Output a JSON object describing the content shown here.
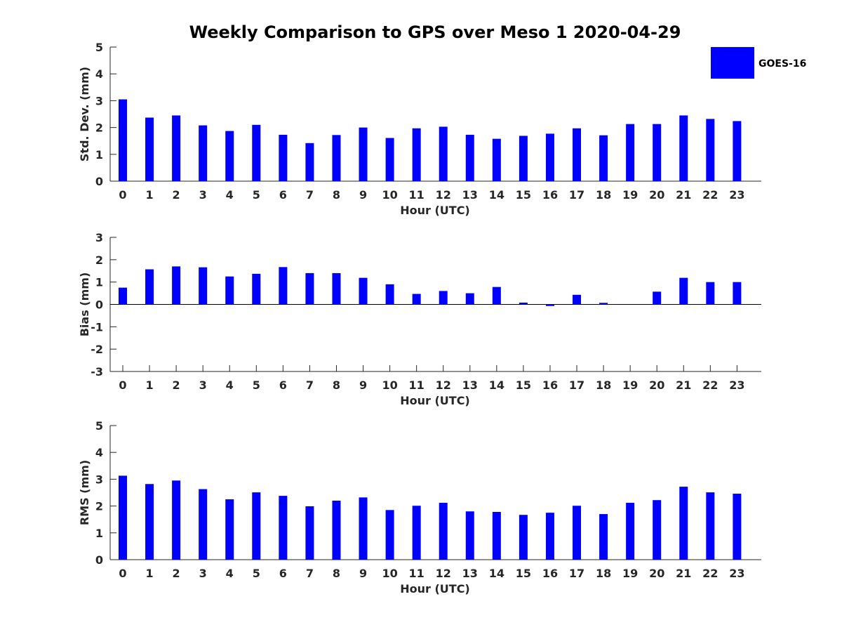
{
  "chart_data": {
    "title": "Weekly Comparison to GPS over Meso 1 2020-04-29",
    "legend": {
      "label": "GOES-16",
      "color": "#0000ff",
      "placement": "top-right"
    },
    "panels": [
      {
        "type": "bar",
        "ylabel": "Std. Dev. (mm)",
        "xlabel": "Hour (UTC)",
        "ylim": [
          0,
          5
        ],
        "yticks": [
          0,
          1,
          2,
          3,
          4,
          5
        ],
        "categories": [
          0,
          1,
          2,
          3,
          4,
          5,
          6,
          7,
          8,
          9,
          10,
          11,
          12,
          13,
          14,
          15,
          16,
          17,
          18,
          19,
          20,
          21,
          22,
          23
        ],
        "series": [
          {
            "name": "GOES-16",
            "color": "#0000ff",
            "values": [
              3.05,
              2.37,
              2.45,
              2.08,
              1.87,
              2.1,
              1.73,
              1.42,
              1.72,
              2.0,
              1.61,
              1.97,
              2.03,
              1.73,
              1.58,
              1.69,
              1.77,
              1.97,
              1.71,
              2.13,
              2.13,
              2.45,
              2.32,
              2.24
            ]
          }
        ]
      },
      {
        "type": "bar",
        "ylabel": "Bias (mm)",
        "xlabel": "Hour (UTC)",
        "ylim": [
          -3,
          3
        ],
        "yticks": [
          -3,
          -2,
          -1,
          0,
          1,
          2,
          3
        ],
        "categories": [
          0,
          1,
          2,
          3,
          4,
          5,
          6,
          7,
          8,
          9,
          10,
          11,
          12,
          13,
          14,
          15,
          16,
          17,
          18,
          19,
          20,
          21,
          22,
          23
        ],
        "series": [
          {
            "name": "GOES-16",
            "color": "#0000ff",
            "values": [
              0.75,
              1.57,
              1.7,
              1.66,
              1.25,
              1.37,
              1.67,
              1.4,
              1.4,
              1.19,
              0.9,
              0.47,
              0.6,
              0.5,
              0.78,
              0.08,
              -0.07,
              0.43,
              0.07,
              0.0,
              0.57,
              1.19,
              1.0,
              1.0
            ]
          }
        ]
      },
      {
        "type": "bar",
        "ylabel": "RMS (mm)",
        "xlabel": "Hour (UTC)",
        "ylim": [
          0,
          5
        ],
        "yticks": [
          0,
          1,
          2,
          3,
          4,
          5
        ],
        "categories": [
          0,
          1,
          2,
          3,
          4,
          5,
          6,
          7,
          8,
          9,
          10,
          11,
          12,
          13,
          14,
          15,
          16,
          17,
          18,
          19,
          20,
          21,
          22,
          23
        ],
        "series": [
          {
            "name": "GOES-16",
            "color": "#0000ff",
            "values": [
              3.13,
              2.82,
              2.95,
              2.63,
              2.25,
              2.51,
              2.38,
              1.99,
              2.2,
              2.32,
              1.85,
              2.01,
              2.12,
              1.8,
              1.78,
              1.67,
              1.75,
              2.01,
              1.7,
              2.12,
              2.22,
              2.72,
              2.51,
              2.46
            ]
          }
        ]
      }
    ]
  }
}
